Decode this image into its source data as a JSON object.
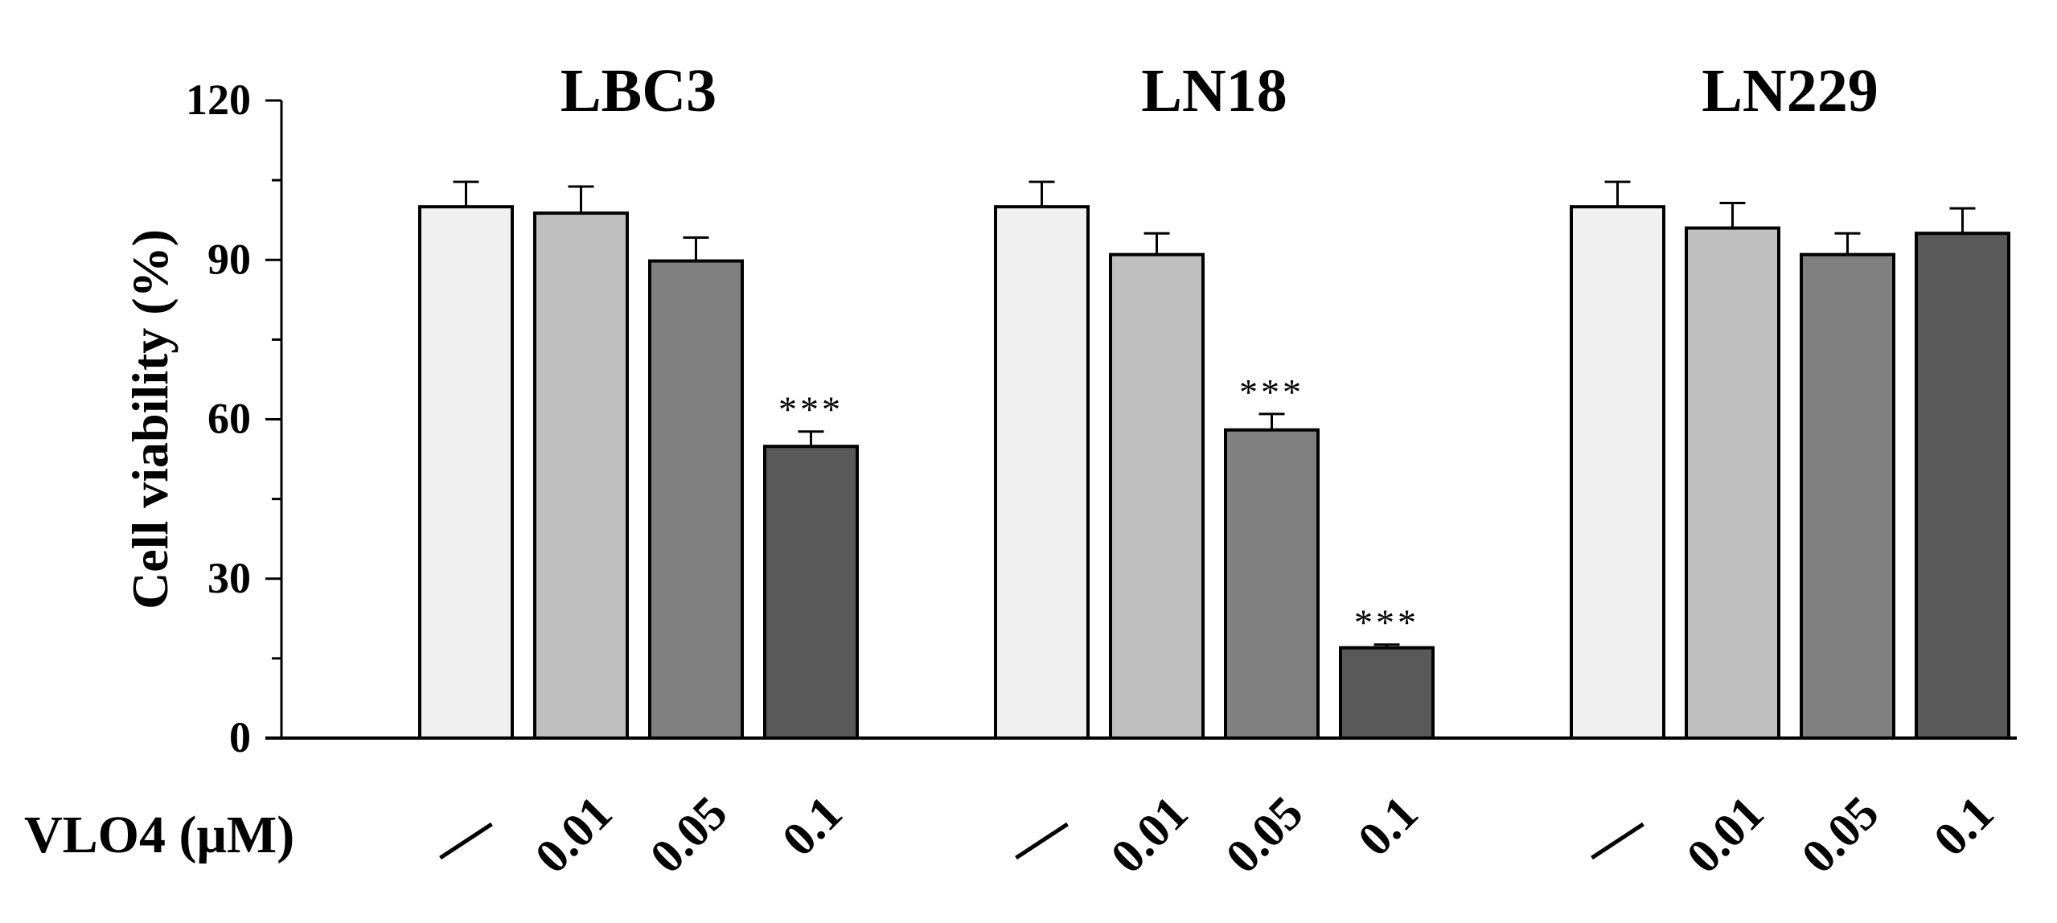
{
  "chart_data": {
    "type": "bar",
    "ylabel": "Cell viability (%)",
    "ylim": [
      0,
      120
    ],
    "yticks": [
      0,
      30,
      60,
      90,
      120
    ],
    "xaxis_title": "VLO4 (μM)",
    "categories": [
      "/",
      "0.01",
      "0.05",
      "0.1"
    ],
    "category_colors": [
      "#f0f0f0",
      "#bfbfbf",
      "#808080",
      "#595959"
    ],
    "groups": [
      {
        "name": "LBC3",
        "values": [
          100,
          98.8,
          89.8,
          54.9
        ],
        "errors": [
          4.7,
          5,
          4.4,
          2.8
        ],
        "annotations": [
          "",
          "",
          "",
          "***"
        ]
      },
      {
        "name": "LN18",
        "values": [
          100,
          91,
          58,
          17
        ],
        "errors": [
          4.7,
          4,
          3,
          0.6
        ],
        "annotations": [
          "",
          "",
          "***",
          "***"
        ]
      },
      {
        "name": "LN229",
        "values": [
          100,
          96,
          91,
          95
        ],
        "errors": [
          4.7,
          4.7,
          4,
          4.7
        ],
        "annotations": [
          "",
          "",
          "",
          ""
        ]
      }
    ],
    "grid": false,
    "legend": "none"
  }
}
